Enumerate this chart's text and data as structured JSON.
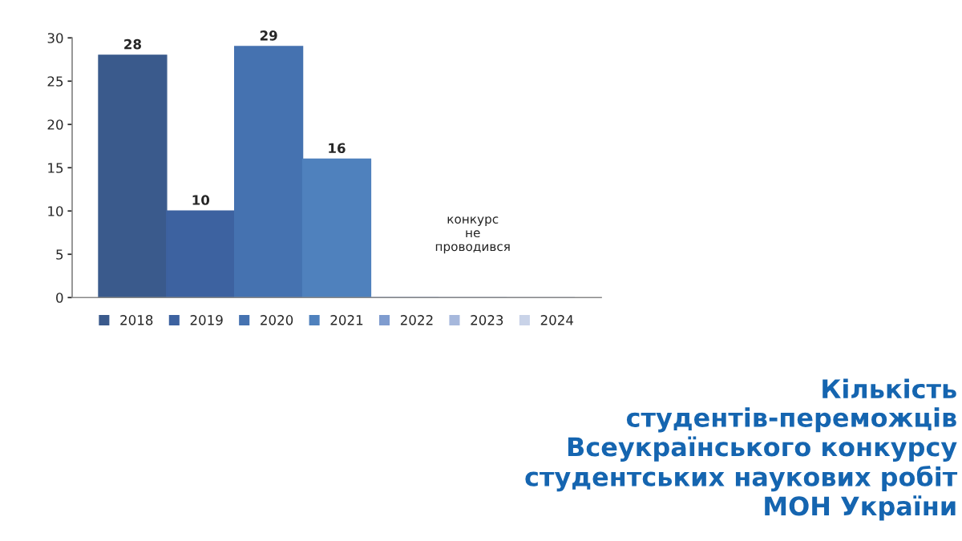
{
  "chart_data": {
    "type": "bar",
    "title": "Кількість студентів-переможців Всеукраїнського конкурсу студентських наукових робіт МОН України",
    "categories": [
      null
    ],
    "series": [
      {
        "name": "2018",
        "color": "#3a5a8c",
        "values": [
          28
        ],
        "value_labels": [
          "28"
        ]
      },
      {
        "name": "2019",
        "color": "#3d62a0",
        "values": [
          10
        ],
        "value_labels": [
          "10"
        ]
      },
      {
        "name": "2020",
        "color": "#4572b0",
        "values": [
          29
        ],
        "value_labels": [
          "29"
        ]
      },
      {
        "name": "2021",
        "color": "#4f81bd",
        "values": [
          16
        ],
        "value_labels": [
          "16"
        ]
      },
      {
        "name": "2022",
        "color": "#7f9ccf",
        "values": [
          0
        ],
        "value_labels": [
          null
        ]
      },
      {
        "name": "2023",
        "color": "#a6b8dc",
        "values": [
          0
        ],
        "value_labels": [
          null
        ]
      },
      {
        "name": "2024",
        "color": "#c9d3e8",
        "values": [
          0
        ],
        "value_labels": [
          null
        ]
      }
    ],
    "annotations": [
      "конкурс\nне\nпроводився"
    ],
    "ylim": [
      0,
      30
    ],
    "yticks": [
      0,
      5,
      10,
      15,
      20,
      25,
      30
    ],
    "grid": false,
    "legend": "bottom"
  }
}
